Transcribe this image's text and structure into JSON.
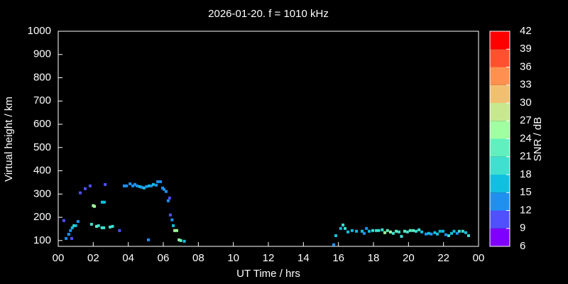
{
  "chart_data": {
    "type": "scatter",
    "title": "2026-01-20. f = 1010 kHz",
    "x_label": "UT Time / hrs",
    "y_label": "Virtual height / km",
    "colorbar_label": "SNR / dB",
    "xlim": [
      0,
      24
    ],
    "xticks": [
      {
        "value": 0,
        "label": "00"
      },
      {
        "value": 2,
        "label": "02"
      },
      {
        "value": 4,
        "label": "04"
      },
      {
        "value": 6,
        "label": "06"
      },
      {
        "value": 8,
        "label": "08"
      },
      10,
      12,
      14,
      16,
      18,
      20,
      22,
      {
        "value": 24,
        "label": "00"
      }
    ],
    "ylim": [
      75,
      1000
    ],
    "yticks": [
      100,
      200,
      300,
      400,
      500,
      600,
      700,
      800,
      900,
      1000
    ],
    "clim": [
      6,
      42
    ],
    "cticks": [
      6,
      9,
      12,
      15,
      18,
      21,
      24,
      27,
      30,
      33,
      36,
      39,
      42
    ],
    "colors": [
      "#8000ff",
      "#5050ff",
      "#2090f0",
      "#10c0e0",
      "#40e0d0",
      "#60f0c0",
      "#a0ffa0",
      "#c8e890",
      "#f0c070",
      "#ff9050",
      "#ff5030",
      "#ff0000"
    ],
    "x": [
      0.32,
      0.45,
      0.6,
      0.7,
      0.8,
      0.9,
      1.0,
      1.13,
      0.77,
      1.26,
      1.54,
      1.82,
      1.9,
      2.0,
      2.07,
      2.19,
      2.3,
      2.51,
      2.63,
      2.68,
      2.5,
      2.6,
      2.96,
      3.1,
      3.5,
      3.77,
      3.9,
      4.1,
      4.26,
      4.38,
      4.5,
      4.66,
      4.78,
      4.9,
      5.03,
      5.19,
      5.15,
      5.31,
      5.43,
      5.6,
      5.68,
      5.84,
      5.96,
      6.04,
      6.16,
      6.28,
      6.36,
      6.4,
      6.5,
      6.57,
      6.65,
      6.77,
      6.9,
      7.0,
      7.2,
      15.73,
      15.85,
      16.13,
      16.26,
      16.38,
      16.54,
      16.78,
      17.03,
      17.35,
      17.47,
      17.6,
      17.76,
      17.96,
      18.16,
      18.3,
      18.5,
      18.65,
      18.8,
      18.97,
      19.13,
      19.3,
      19.46,
      19.6,
      19.78,
      19.94,
      20.1,
      20.27,
      20.43,
      20.6,
      20.76,
      21.0,
      21.16,
      21.3,
      21.5,
      21.65,
      21.8,
      21.97,
      22.13,
      22.3,
      22.46,
      22.6,
      22.78,
      22.9,
      23.1,
      23.27,
      23.43
    ],
    "values": [
      186,
      109,
      127,
      143,
      155,
      164,
      164,
      182,
      109,
      305,
      323,
      335,
      170,
      250,
      247,
      161,
      164,
      265,
      265,
      341,
      155,
      155,
      158,
      161,
      143,
      335,
      335,
      344,
      335,
      341,
      335,
      332,
      329,
      326,
      332,
      335,
      103,
      335,
      341,
      338,
      353,
      353,
      326,
      320,
      311,
      271,
      283,
      210,
      189,
      164,
      143,
      143,
      103,
      100,
      97,
      82,
      121,
      152,
      167,
      152,
      137,
      143,
      140,
      140,
      131,
      152,
      140,
      143,
      143,
      143,
      146,
      134,
      143,
      137,
      131,
      140,
      137,
      118,
      140,
      137,
      143,
      143,
      140,
      146,
      137,
      128,
      131,
      128,
      134,
      128,
      140,
      140,
      125,
      121,
      131,
      140,
      131,
      140,
      140,
      134,
      121
    ],
    "snr": [
      10,
      13,
      13,
      14,
      16,
      19,
      16,
      13,
      10,
      10,
      10,
      10,
      19,
      25,
      25,
      22,
      19,
      16,
      16,
      10,
      19,
      19,
      20,
      19,
      11,
      13,
      13,
      14,
      13,
      13,
      14,
      16,
      14,
      16,
      13,
      16,
      13,
      14,
      17,
      14,
      13,
      14,
      14,
      13,
      13,
      13,
      10,
      11,
      13,
      16,
      25,
      25,
      25,
      22,
      16,
      13,
      16,
      16,
      19,
      19,
      16,
      16,
      16,
      16,
      14,
      13,
      17,
      19,
      19,
      20,
      19,
      25,
      22,
      25,
      19,
      22,
      19,
      19,
      22,
      19,
      22,
      22,
      19,
      19,
      16,
      14,
      16,
      14,
      16,
      16,
      16,
      16,
      14,
      19,
      16,
      16,
      14,
      19,
      19,
      16,
      19
    ]
  }
}
